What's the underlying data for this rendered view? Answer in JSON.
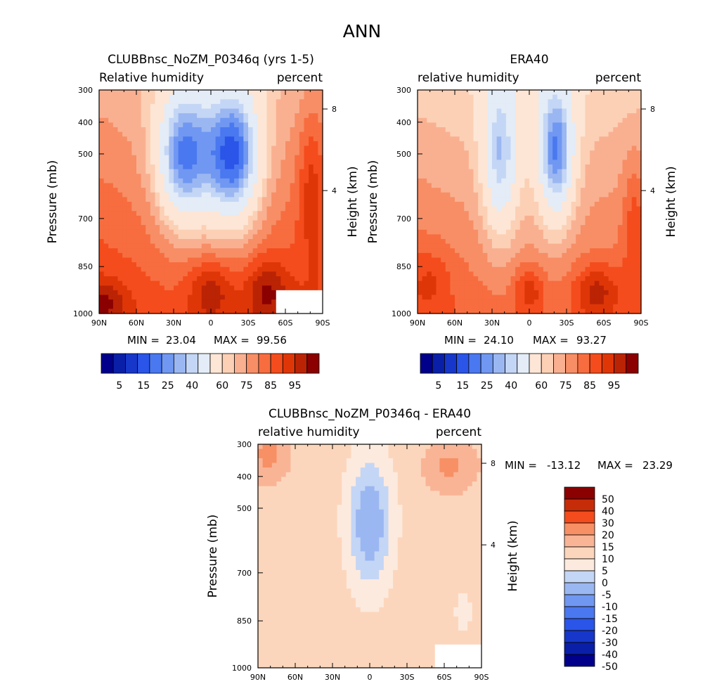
{
  "page_title": "ANN",
  "colors": {
    "full": [
      "#00008b",
      "#0a1fa8",
      "#1637c9",
      "#2a55e8",
      "#4a78f0",
      "#7098f2",
      "#9bb7f2",
      "#c4d6f5",
      "#e3ecf7",
      "#fde6d5",
      "#fcd0b5",
      "#f9b091",
      "#f78e66",
      "#f76d3f",
      "#f44c1c",
      "#df3608",
      "#bb2305",
      "#8b0000"
    ],
    "diff": [
      "#00008b",
      "#0a1fa8",
      "#1637c9",
      "#2a55e8",
      "#4a78f0",
      "#7098f2",
      "#9bb7f2",
      "#c4d6f5",
      "#fdeade",
      "#fcd6bc",
      "#f9b496",
      "#f79065",
      "#f44c1c",
      "#c72c08",
      "#8b0000"
    ]
  },
  "chart_data": [
    {
      "type": "heatmap",
      "id": "model",
      "title": "CLUBBnsc_NoZM_P0346q (yrs 1-5)",
      "left_label": "Relative humidity",
      "right_label": "percent",
      "ylabel": "Pressure (mb)",
      "y2label": "Height (km)",
      "x_ticks": [
        "90N",
        "60N",
        "30N",
        "0",
        "30S",
        "60S",
        "90S"
      ],
      "y_ticks": [
        "300",
        "400",
        "500",
        "700",
        "850",
        "1000"
      ],
      "y2_ticks": [
        "8",
        "4"
      ],
      "min_label": "MIN =",
      "min_value": "23.04",
      "max_label": "MAX =",
      "max_value": "99.56",
      "colorbar_labels": [
        "5",
        "15",
        "25",
        "40",
        "60",
        "75",
        "85",
        "95"
      ],
      "levels": [
        5,
        10,
        15,
        20,
        25,
        30,
        35,
        40,
        50,
        60,
        65,
        70,
        75,
        80,
        85,
        90,
        95
      ]
    },
    {
      "type": "heatmap",
      "id": "obs",
      "title": "ERA40",
      "left_label": "relative humidity",
      "right_label": "percent",
      "ylabel": "Pressure (mb)",
      "y2label": "Height (km)",
      "x_ticks": [
        "90N",
        "60N",
        "30N",
        "0",
        "30S",
        "60S",
        "90S"
      ],
      "y_ticks": [
        "300",
        "400",
        "500",
        "700",
        "850",
        "1000"
      ],
      "y2_ticks": [
        "8",
        "4"
      ],
      "min_label": "MIN =",
      "min_value": "24.10",
      "max_label": "MAX =",
      "max_value": "93.27",
      "colorbar_labels": [
        "5",
        "15",
        "25",
        "40",
        "60",
        "75",
        "85",
        "95"
      ],
      "levels": [
        5,
        10,
        15,
        20,
        25,
        30,
        35,
        40,
        50,
        60,
        65,
        70,
        75,
        80,
        85,
        90,
        95
      ]
    },
    {
      "type": "heatmap",
      "id": "diff",
      "title": "CLUBBnsc_NoZM_P0346q - ERA40",
      "left_label": "relative humidity",
      "right_label": "percent",
      "ylabel": "Pressure (mb)",
      "y2label": "Height (km)",
      "x_ticks": [
        "90N",
        "60N",
        "30N",
        "0",
        "30S",
        "60S",
        "90S"
      ],
      "y_ticks": [
        "300",
        "400",
        "500",
        "700",
        "850",
        "1000"
      ],
      "y2_ticks": [
        "8",
        "4"
      ],
      "min_label": "MIN =",
      "min_value": "-13.12",
      "max_label": "MAX =",
      "max_value": "23.29",
      "colorbar_labels": [
        "50",
        "40",
        "30",
        "20",
        "15",
        "10",
        "5",
        "0",
        "-5",
        "-10",
        "-15",
        "-20",
        "-30",
        "-40",
        "-50"
      ],
      "levels": [
        -50,
        -40,
        -30,
        -20,
        -15,
        -10,
        -5,
        0,
        5,
        10,
        15,
        20,
        30,
        40,
        50
      ]
    }
  ]
}
